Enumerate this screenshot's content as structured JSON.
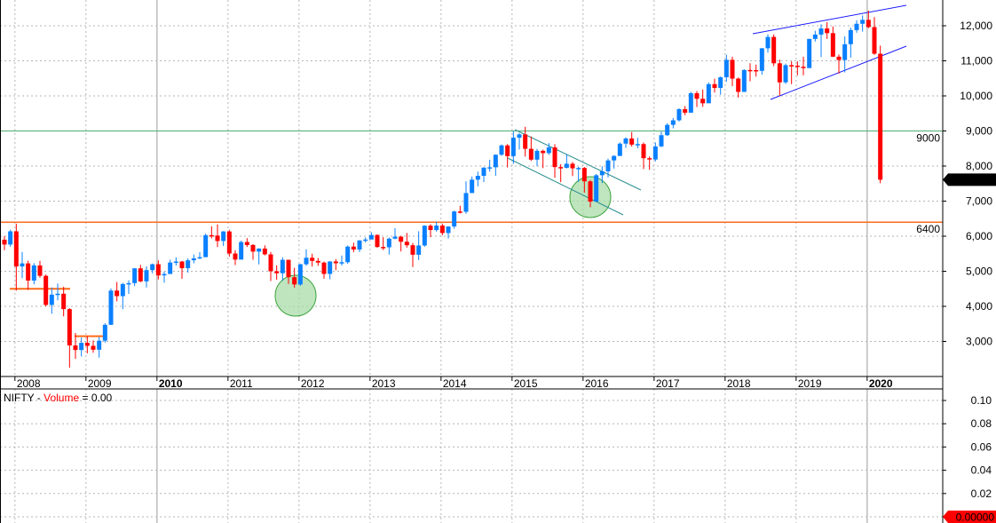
{
  "chart_data": {
    "type": "candlestick",
    "symbol": "NIFTY",
    "interval": "monthly",
    "ylim": [
      2000,
      12700
    ],
    "y_ticks": [
      "3,000",
      "4,000",
      "5,000",
      "6,000",
      "7,000",
      "8,000",
      "9,000",
      "10,000",
      "11,000",
      "12,000"
    ],
    "y_tick_values": [
      3000,
      4000,
      5000,
      6000,
      7000,
      8000,
      9000,
      10000,
      11000,
      12000
    ],
    "x_ticks": [
      "2008",
      "2009",
      "2010",
      "2011",
      "2012",
      "2013",
      "2014",
      "2015",
      "2016",
      "2017",
      "2018",
      "2019",
      "2020"
    ],
    "bold_x_ticks": [
      "2010",
      "2020"
    ],
    "last_price_label": "7,610.25",
    "levels": [
      {
        "label": "9000",
        "value": 9000,
        "color": "#4fae74"
      },
      {
        "label": "6400",
        "value": 6400,
        "color": "#ff6a1a"
      }
    ],
    "colors": {
      "up": "#0a80ff",
      "down": "#ff0000",
      "channel": "#2a8f8f",
      "wedge": "#1a1aff",
      "support": "#ff6a1a",
      "circle_fill": "#a9dca9",
      "circle_stroke": "#3aa33a"
    },
    "ohlc": [
      [
        "2007-11",
        5900,
        6000,
        5600,
        5762
      ],
      [
        "2007-12",
        5762,
        6185,
        5700,
        6139
      ],
      [
        "2008-01",
        6139,
        6357,
        4448,
        5137
      ],
      [
        "2008-02",
        5137,
        5546,
        4803,
        5224
      ],
      [
        "2008-03",
        5224,
        5300,
        4468,
        4735
      ],
      [
        "2008-04",
        4735,
        5230,
        4628,
        5166
      ],
      [
        "2008-05",
        5166,
        5298,
        4812,
        4870
      ],
      [
        "2008-06",
        4870,
        4908,
        3998,
        4040
      ],
      [
        "2008-07",
        4040,
        4539,
        3790,
        4333
      ],
      [
        "2008-08",
        4333,
        4650,
        4170,
        4360
      ],
      [
        "2008-09",
        4360,
        4558,
        3715,
        3921
      ],
      [
        "2008-10",
        3921,
        3950,
        2252,
        2885
      ],
      [
        "2008-11",
        2885,
        3240,
        2502,
        2755
      ],
      [
        "2008-12",
        2755,
        3110,
        2570,
        2959
      ],
      [
        "2009-01",
        2959,
        3147,
        2661,
        2874
      ],
      [
        "2009-02",
        2874,
        3030,
        2677,
        2763
      ],
      [
        "2009-03",
        2763,
        3123,
        2539,
        3021
      ],
      [
        "2009-04",
        3021,
        3517,
        2965,
        3474
      ],
      [
        "2009-05",
        3474,
        4509,
        3468,
        4449
      ],
      [
        "2009-06",
        4449,
        4693,
        4143,
        4291
      ],
      [
        "2009-07",
        4291,
        4669,
        3919,
        4636
      ],
      [
        "2009-08",
        4636,
        4744,
        4353,
        4662
      ],
      [
        "2009-09",
        4662,
        5087,
        4576,
        5084
      ],
      [
        "2009-10",
        5084,
        5182,
        4687,
        4712
      ],
      [
        "2009-11",
        4712,
        5138,
        4538,
        5033
      ],
      [
        "2009-12",
        5033,
        5221,
        4943,
        5201
      ],
      [
        "2010-01",
        5201,
        5311,
        4766,
        4882
      ],
      [
        "2010-02",
        4882,
        4990,
        4675,
        4922
      ],
      [
        "2010-03",
        4922,
        5329,
        4935,
        5249
      ],
      [
        "2010-04",
        5249,
        5399,
        5160,
        5278
      ],
      [
        "2010-05",
        5278,
        5294,
        4786,
        5087
      ],
      [
        "2010-06",
        5087,
        5366,
        4961,
        5313
      ],
      [
        "2010-07",
        5313,
        5478,
        5225,
        5368
      ],
      [
        "2010-08",
        5368,
        5549,
        5349,
        5402
      ],
      [
        "2010-09",
        5402,
        6073,
        5403,
        6030
      ],
      [
        "2010-10",
        6030,
        6284,
        5937,
        6018
      ],
      [
        "2010-11",
        6018,
        6338,
        5690,
        5863
      ],
      [
        "2010-12",
        5863,
        6147,
        5721,
        6135
      ],
      [
        "2011-01",
        6135,
        6181,
        5416,
        5506
      ],
      [
        "2011-02",
        5506,
        5600,
        5177,
        5333
      ],
      [
        "2011-03",
        5333,
        5872,
        5348,
        5834
      ],
      [
        "2011-04",
        5834,
        5945,
        5693,
        5749
      ],
      [
        "2011-05",
        5749,
        5775,
        5328,
        5560
      ],
      [
        "2011-06",
        5560,
        5657,
        5195,
        5647
      ],
      [
        "2011-07",
        5647,
        5740,
        5453,
        5482
      ],
      [
        "2011-08",
        5482,
        5551,
        4720,
        5001
      ],
      [
        "2011-09",
        5001,
        5169,
        4758,
        4943
      ],
      [
        "2011-10",
        4943,
        5399,
        4728,
        5327
      ],
      [
        "2011-11",
        5327,
        5327,
        4639,
        4832
      ],
      [
        "2011-12",
        4832,
        5099,
        4531,
        4624
      ],
      [
        "2012-01",
        4624,
        5217,
        4588,
        5199
      ],
      [
        "2012-02",
        5199,
        5630,
        5159,
        5385
      ],
      [
        "2012-03",
        5385,
        5499,
        5135,
        5296
      ],
      [
        "2012-04",
        5296,
        5379,
        5154,
        5248
      ],
      [
        "2012-05",
        5248,
        5279,
        4789,
        4924
      ],
      [
        "2012-06",
        4924,
        5286,
        4770,
        5279
      ],
      [
        "2012-07",
        5279,
        5348,
        5032,
        5229
      ],
      [
        "2012-08",
        5229,
        5448,
        5164,
        5259
      ],
      [
        "2012-09",
        5259,
        5735,
        5215,
        5703
      ],
      [
        "2012-10",
        5703,
        5815,
        5548,
        5620
      ],
      [
        "2012-11",
        5620,
        5885,
        5549,
        5880
      ],
      [
        "2012-12",
        5880,
        5965,
        5823,
        5905
      ],
      [
        "2013-01",
        5905,
        6111,
        5935,
        6035
      ],
      [
        "2013-02",
        6035,
        6053,
        5671,
        5693
      ],
      [
        "2013-03",
        5693,
        5971,
        5605,
        5683
      ],
      [
        "2013-04",
        5683,
        5963,
        5477,
        5930
      ],
      [
        "2013-05",
        5930,
        6229,
        5910,
        5986
      ],
      [
        "2013-06",
        5986,
        6011,
        5566,
        5842
      ],
      [
        "2013-07",
        5842,
        6093,
        5675,
        5742
      ],
      [
        "2013-08",
        5742,
        5808,
        5119,
        5471
      ],
      [
        "2013-09",
        5471,
        6142,
        5318,
        5735
      ],
      [
        "2013-10",
        5735,
        6309,
        5700,
        6299
      ],
      [
        "2013-11",
        6299,
        6342,
        5973,
        6176
      ],
      [
        "2013-12",
        6176,
        6415,
        6130,
        6304
      ],
      [
        "2014-01",
        6304,
        6358,
        6027,
        6090
      ],
      [
        "2014-02",
        6090,
        6282,
        5933,
        6277
      ],
      [
        "2014-03",
        6277,
        6730,
        6212,
        6704
      ],
      [
        "2014-04",
        6704,
        6869,
        6650,
        6696
      ],
      [
        "2014-05",
        6696,
        7563,
        6638,
        7230
      ],
      [
        "2014-06",
        7230,
        7700,
        7239,
        7611
      ],
      [
        "2014-07",
        7611,
        7840,
        7422,
        7721
      ],
      [
        "2014-08",
        7721,
        7968,
        7540,
        7954
      ],
      [
        "2014-09",
        7954,
        8180,
        7841,
        7965
      ],
      [
        "2014-10",
        7965,
        8330,
        7723,
        8322
      ],
      [
        "2014-11",
        8322,
        8617,
        8290,
        8588
      ],
      [
        "2014-12",
        8588,
        8627,
        7961,
        8283
      ],
      [
        "2015-01",
        8283,
        8996,
        8065,
        8809
      ],
      [
        "2015-02",
        8809,
        8941,
        8470,
        8902
      ],
      [
        "2015-03",
        8902,
        9119,
        8269,
        8491
      ],
      [
        "2015-04",
        8491,
        8844,
        8144,
        8182
      ],
      [
        "2015-05",
        8182,
        8489,
        7997,
        8434
      ],
      [
        "2015-06",
        8434,
        8467,
        7940,
        8369
      ],
      [
        "2015-07",
        8369,
        8655,
        8315,
        8533
      ],
      [
        "2015-08",
        8533,
        8622,
        7667,
        7971
      ],
      [
        "2015-09",
        7971,
        8055,
        7540,
        7949
      ],
      [
        "2015-10",
        7949,
        8336,
        7931,
        8066
      ],
      [
        "2015-11",
        8066,
        8116,
        7714,
        7935
      ],
      [
        "2015-12",
        7935,
        7979,
        7551,
        7946
      ],
      [
        "2016-01",
        7946,
        7973,
        7241,
        7564
      ],
      [
        "2016-02",
        7564,
        7600,
        6825,
        6987
      ],
      [
        "2016-03",
        6987,
        7777,
        7035,
        7738
      ],
      [
        "2016-04",
        7738,
        7992,
        7516,
        7850
      ],
      [
        "2016-05",
        7850,
        8213,
        7678,
        8160
      ],
      [
        "2016-06",
        8160,
        8308,
        7927,
        8288
      ],
      [
        "2016-07",
        8288,
        8674,
        8287,
        8639
      ],
      [
        "2016-08",
        8639,
        8819,
        8518,
        8786
      ],
      [
        "2016-09",
        8786,
        8968,
        8555,
        8611
      ],
      [
        "2016-10",
        8611,
        8807,
        8506,
        8626
      ],
      [
        "2016-11",
        8626,
        8670,
        7916,
        8224
      ],
      [
        "2016-12",
        8224,
        8274,
        7893,
        8186
      ],
      [
        "2017-01",
        8186,
        8672,
        8133,
        8561
      ],
      [
        "2017-02",
        8561,
        8982,
        8537,
        8880
      ],
      [
        "2017-03",
        8880,
        9218,
        8860,
        9174
      ],
      [
        "2017-04",
        9174,
        9367,
        9075,
        9304
      ],
      [
        "2017-05",
        9304,
        9649,
        9269,
        9621
      ],
      [
        "2017-06",
        9621,
        9709,
        9448,
        9521
      ],
      [
        "2017-07",
        9521,
        10115,
        9543,
        10077
      ],
      [
        "2017-08",
        10077,
        10138,
        9685,
        9918
      ],
      [
        "2017-09",
        9918,
        10179,
        9687,
        9789
      ],
      [
        "2017-10",
        9789,
        10384,
        9831,
        10335
      ],
      [
        "2017-11",
        10335,
        10490,
        10094,
        10227
      ],
      [
        "2017-12",
        10227,
        10553,
        10033,
        10531
      ],
      [
        "2018-01",
        10531,
        11172,
        10404,
        11028
      ],
      [
        "2018-02",
        11028,
        11118,
        10276,
        10493
      ],
      [
        "2018-03",
        10493,
        10525,
        9952,
        10114
      ],
      [
        "2018-04",
        10114,
        10759,
        10112,
        10739
      ],
      [
        "2018-05",
        10739,
        10930,
        10417,
        10736
      ],
      [
        "2018-06",
        10736,
        10893,
        10550,
        10714
      ],
      [
        "2018-07",
        10714,
        11366,
        10604,
        11357
      ],
      [
        "2018-08",
        11357,
        11760,
        11234,
        11681
      ],
      [
        "2018-09",
        11681,
        11752,
        10850,
        10930
      ],
      [
        "2018-10",
        10930,
        11035,
        10005,
        10387
      ],
      [
        "2018-11",
        10387,
        10922,
        10342,
        10877
      ],
      [
        "2018-12",
        10877,
        10985,
        10334,
        10863
      ],
      [
        "2019-01",
        10863,
        10988,
        10584,
        10831
      ],
      [
        "2019-02",
        10831,
        11118,
        10586,
        10793
      ],
      [
        "2019-03",
        10793,
        11630,
        10817,
        11624
      ],
      [
        "2019-04",
        11624,
        11856,
        11550,
        11748
      ],
      [
        "2019-05",
        11748,
        12041,
        11108,
        11923
      ],
      [
        "2019-06",
        11923,
        12103,
        11625,
        11789
      ],
      [
        "2019-07",
        11789,
        11981,
        11107,
        11118
      ],
      [
        "2019-08",
        11118,
        11181,
        10637,
        11023
      ],
      [
        "2019-09",
        11023,
        11695,
        10670,
        11474
      ],
      [
        "2019-10",
        11474,
        11945,
        11090,
        11877
      ],
      [
        "2019-11",
        11877,
        12159,
        11802,
        12056
      ],
      [
        "2019-12",
        12056,
        12294,
        11832,
        12168
      ],
      [
        "2020-01",
        12168,
        12430,
        11929,
        11962
      ],
      [
        "2020-02",
        11962,
        12247,
        11175,
        11202
      ],
      [
        "2020-03",
        11202,
        11434,
        7511,
        7610.25
      ]
    ]
  },
  "volume_panel": {
    "symbol": "NIFTY",
    "separator": " - ",
    "label": "Volume",
    "value_text": " = 0.00",
    "y_ticks": [
      "0.10",
      "0.08",
      "0.06",
      "0.04",
      "0.02"
    ],
    "y_tick_values": [
      0.1,
      0.08,
      0.06,
      0.04,
      0.02
    ],
    "last_value_label": "0.00000"
  }
}
